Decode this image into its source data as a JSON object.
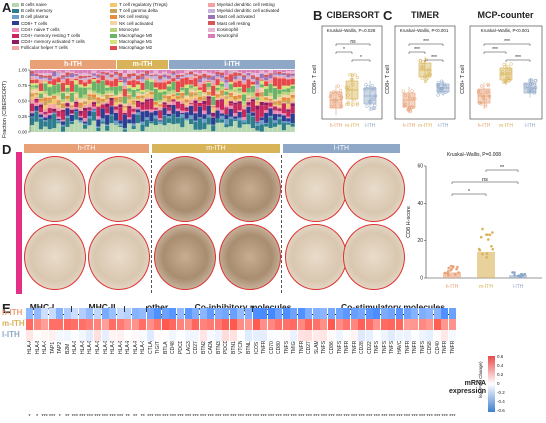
{
  "panels": {
    "A": "A",
    "B": "B",
    "C": "C",
    "D": "D",
    "E": "E"
  },
  "legend": {
    "items": [
      {
        "label": "B cells naive",
        "color": "#b7d7b0"
      },
      {
        "label": "B cells memory",
        "color": "#2e7d8c"
      },
      {
        "label": "B cell plasma",
        "color": "#6aa0c8"
      },
      {
        "label": "CD8+ T cells",
        "color": "#2d3e91"
      },
      {
        "label": "CD4+ naive T cells",
        "color": "#f08bb5"
      },
      {
        "label": "CD4+ memory resting T cells",
        "color": "#c8285c"
      },
      {
        "label": "CD4+ memory activated T cells",
        "color": "#8e1c63"
      },
      {
        "label": "Follicular helper T cells",
        "color": "#f4a6a6"
      },
      {
        "label": "T cell regulatory (Tregs)",
        "color": "#f3c76b"
      },
      {
        "label": "T cell gamma delta",
        "color": "#c9a35b"
      },
      {
        "label": "NK cell resting",
        "color": "#e98b3a"
      },
      {
        "label": "NK cell activated",
        "color": "#f4d3a5"
      },
      {
        "label": "Monocyte",
        "color": "#b9d37a"
      },
      {
        "label": "Macrophage M0",
        "color": "#6cb36a"
      },
      {
        "label": "Macrophage M1",
        "color": "#d6e37b"
      },
      {
        "label": "Macrophage M2",
        "color": "#e6474a"
      },
      {
        "label": "Myeloid dendritic cell resting",
        "color": "#f6a0a0"
      },
      {
        "label": "Myeloid dendritic cell activated",
        "color": "#c7b3da"
      },
      {
        "label": "Mast cell activated",
        "color": "#9b72b8"
      },
      {
        "label": "Mast cell resting",
        "color": "#d45656"
      },
      {
        "label": "Eosinophil",
        "color": "#e7b6d2"
      },
      {
        "label": "Neutrophil",
        "color": "#d97cb7"
      }
    ]
  },
  "groups": {
    "h": "h-ITH",
    "m": "m-ITH",
    "l": "l-ITH"
  },
  "colors": {
    "h": "#e8a077",
    "m": "#d8b357",
    "l": "#8fa8c8",
    "pink": "#e32f85"
  },
  "panelA": {
    "ylabel": "Fraction (CIBERSORT)",
    "ticks": [
      "0.00",
      "0.25",
      "0.50",
      "0.75",
      "1.00"
    ]
  },
  "panelB": {
    "title": "CIBERSORT",
    "stat": "Kruskal–Wallis, P=0.028",
    "ylabel": "CD8+ T cell",
    "sig": [
      "*",
      "ns",
      "*"
    ]
  },
  "panelC1": {
    "title": "TIMER",
    "stat": "Kruskal–Wallis, P<0.001",
    "ylabel": "CD8+ T cell",
    "sig": [
      "***",
      "***",
      "***"
    ]
  },
  "panelC2": {
    "title": "MCP-counter",
    "stat": "Kruskal–Wallis, P<0.001",
    "ylabel": "CD8+ T cell",
    "sig": [
      "***",
      "***",
      "***"
    ]
  },
  "panelD": {
    "side_label": "CD8 200x",
    "stat": "Kruskal–Wallis, P=0.008",
    "ylabel": "CD8 H-score",
    "sig": [
      "*",
      "ns",
      "**"
    ],
    "bar_values": [
      3,
      14,
      1.5
    ],
    "ylim": [
      0,
      60
    ],
    "yticks": [
      "0",
      "20",
      "40",
      "60"
    ]
  },
  "panelE": {
    "group_titles": [
      "MHC-I",
      "MHC-II",
      "other MHC",
      "Co-inhibitory molecules",
      "Co-stimulatory molecules"
    ],
    "rows": [
      "h-ITH",
      "m-ITH",
      "l-ITH"
    ],
    "genes": [
      "HLA-A",
      "HLA-B",
      "HLA-C",
      "TAP1",
      "TAP2",
      "B2M",
      "HLA-DPA1",
      "HLA-DPB1",
      "HLA-DQA1",
      "HLA-DQB1",
      "HLA-DQA2",
      "HLA-DOB1",
      "HLA-DRB1",
      "HLA-E",
      "HLA-F",
      "HLA-G",
      "CTLA4",
      "TIGIT",
      "BTLA",
      "CD48",
      "PDCD1",
      "LAG3",
      "CD274",
      "BTN2A2",
      "CADM1",
      "BTN3A1",
      "PDCD1LG2",
      "BTN1A1",
      "VTCN1",
      "BTNL2",
      "ICOS",
      "TNFRSF9",
      "CD70",
      "CD80",
      "TNFSF13C",
      "TMIGD2",
      "TNFRSF13B",
      "CD27",
      "SLAMF1",
      "TNFSF13B",
      "CD86",
      "TNFSF4",
      "TNFRSF8",
      "TNFRSF18",
      "CD28",
      "CD226",
      "TNFSF9",
      "TNFSF8",
      "TNFSF18",
      "HAVCR1",
      "TNFRSF4",
      "TNFRSF25",
      "TNFSF15",
      "CD58",
      "CD40LG",
      "TNFRSF8",
      "TNFRSF14"
    ],
    "stars": [
      "*",
      "*",
      "***",
      "***",
      "*",
      "**",
      "***",
      "***",
      "***",
      "***",
      "***",
      "***",
      "***",
      "**",
      "**",
      "**",
      "***",
      "***",
      "***",
      "***",
      "***",
      "***",
      "***",
      "***",
      "***",
      "***",
      "***",
      "***",
      "***",
      "***",
      "***",
      "***",
      "***",
      "***",
      "***",
      "***",
      "***",
      "***",
      "***",
      "***",
      "***",
      "***",
      "***",
      "***",
      "***",
      "***",
      "***",
      "***",
      "***",
      "***",
      "***",
      "***",
      "***",
      "***",
      "***",
      "***",
      "***"
    ],
    "legend_title": "mRNA expression",
    "legend_sub": "log₂(Fold Change)",
    "legend_ticks": [
      "0.6",
      "0.4",
      "0.2",
      "0",
      "-0.2",
      "-0.4",
      "-0.6"
    ]
  }
}
